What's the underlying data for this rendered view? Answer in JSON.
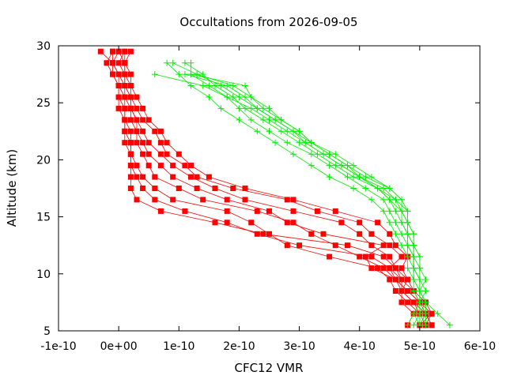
{
  "chart_data": {
    "type": "line",
    "title": "Occultations from 2026-09-05",
    "xlabel": "CFC12 VMR",
    "ylabel": "Altitude (km)",
    "xlim": [
      -1e-10,
      6e-10
    ],
    "ylim": [
      5,
      30
    ],
    "x_ticks": [
      {
        "value": -1e-10,
        "label": "-1e-10"
      },
      {
        "value": 0,
        "label": "0e+00"
      },
      {
        "value": 1e-10,
        "label": "1e-10"
      },
      {
        "value": 2e-10,
        "label": "2e-10"
      },
      {
        "value": 3e-10,
        "label": "3e-10"
      },
      {
        "value": 4e-10,
        "label": "4e-10"
      },
      {
        "value": 5e-10,
        "label": "5e-10"
      },
      {
        "value": 6e-10,
        "label": "6e-10"
      }
    ],
    "y_ticks": [
      {
        "value": 5,
        "label": "5"
      },
      {
        "value": 10,
        "label": "10"
      },
      {
        "value": 15,
        "label": "15"
      },
      {
        "value": 20,
        "label": "20"
      },
      {
        "value": 25,
        "label": "25"
      },
      {
        "value": 30,
        "label": "30"
      }
    ],
    "grid": false,
    "legend": "none",
    "colors": {
      "red_series": "#ff0000",
      "green_series": "#00ee00",
      "axis": "#000000"
    },
    "series": [
      {
        "color": "#ff0000",
        "marker": "square",
        "y": [
          5.5,
          6.5,
          7.5,
          8.5,
          9.5,
          10.5,
          11.5,
          12.5,
          13.5,
          14.5,
          15.5,
          16.5,
          17.5,
          18.5,
          19.5,
          20.5,
          21.5,
          22.5,
          23.5,
          24.5,
          25.5,
          26.5,
          27.5,
          28.5,
          29.5
        ],
        "x": [
          5.2e-10,
          5.1e-10,
          5e-10,
          4.9e-10,
          4.8e-10,
          4.6e-10,
          4.4e-10,
          3.8e-10,
          2.4e-10,
          1.6e-10,
          7e-11,
          3e-11,
          2e-11,
          2e-11,
          2e-11,
          2e-11,
          1e-11,
          1e-11,
          1e-11,
          0,
          0,
          0,
          -1e-11,
          -1e-11,
          -3e-11
        ]
      },
      {
        "color": "#ff0000",
        "marker": "square",
        "y": [
          5.5,
          6.5,
          7.5,
          8.5,
          9.5,
          10.5,
          11.5,
          12.5,
          13.5,
          14.5,
          15.5,
          16.5,
          17.5,
          18.5,
          19.5,
          20.5,
          21.5,
          22.5,
          23.5,
          24.5,
          25.5,
          26.5,
          27.5,
          28.5,
          29.5
        ],
        "x": [
          5e-10,
          5.2e-10,
          5.1e-10,
          4.9e-10,
          4.7e-10,
          4.5e-10,
          4.2e-10,
          3e-10,
          2.3e-10,
          1.8e-10,
          1.1e-10,
          6e-11,
          4e-11,
          3e-11,
          2e-11,
          2e-11,
          2e-11,
          1e-11,
          1e-11,
          1e-11,
          0,
          0,
          -1e-11,
          -2e-11,
          -1e-11
        ]
      },
      {
        "color": "#ff0000",
        "marker": "square",
        "y": [
          5.5,
          6.5,
          7.5,
          8.5,
          9.5,
          10.5,
          11.5,
          12.5,
          13.5,
          14.5,
          15.5,
          16.5,
          17.5,
          18.5,
          19.5,
          20.5,
          21.5,
          22.5,
          23.5,
          24.5,
          25.5,
          26.5,
          27.5,
          28.5,
          29.5
        ],
        "x": [
          5.1e-10,
          5e-10,
          4.8e-10,
          4.6e-10,
          4.5e-10,
          4.3e-10,
          3.5e-10,
          2.8e-10,
          2.5e-10,
          2.2e-10,
          1.8e-10,
          9e-11,
          6e-11,
          4e-11,
          3e-11,
          2e-11,
          2e-11,
          2e-11,
          1e-11,
          1e-11,
          1e-11,
          0,
          0,
          -1e-11,
          0
        ]
      },
      {
        "color": "#ff0000",
        "marker": "square",
        "y": [
          5.5,
          6.5,
          7.5,
          8.5,
          9.5,
          10.5,
          11.5,
          12.5,
          13.5,
          14.5,
          15.5,
          16.5,
          17.5,
          18.5,
          19.5,
          20.5,
          21.5,
          22.5,
          23.5,
          24.5,
          25.5,
          26.5,
          27.5,
          28.5,
          29.5
        ],
        "x": [
          4.8e-10,
          4.9e-10,
          4.7e-10,
          4.7e-10,
          4.6e-10,
          4.4e-10,
          4e-10,
          3.6e-10,
          3.2e-10,
          2.9e-10,
          2.3e-10,
          1.4e-10,
          1e-10,
          6e-11,
          5e-11,
          4e-11,
          3e-11,
          3e-11,
          2e-11,
          2e-11,
          1e-11,
          1e-11,
          0,
          -1e-11,
          -1e-11
        ]
      },
      {
        "color": "#ff0000",
        "marker": "square",
        "y": [
          5.5,
          6.5,
          7.5,
          8.5,
          9.5,
          10.5,
          11.5,
          12.5,
          13.5,
          14.5,
          15.5,
          16.5,
          17.5,
          18.5,
          19.5,
          20.5,
          21.5,
          22.5,
          23.5,
          24.5,
          25.5,
          26.5,
          27.5,
          28.5,
          29.5
        ],
        "x": [
          5.1e-10,
          5.2e-10,
          5e-10,
          4.8e-10,
          4.6e-10,
          4.2e-10,
          4.1e-10,
          4.4e-10,
          3.4e-10,
          2.8e-10,
          2.5e-10,
          1.8e-10,
          1.3e-10,
          9e-11,
          7e-11,
          5e-11,
          4e-11,
          3e-11,
          3e-11,
          2e-11,
          2e-11,
          1e-11,
          1e-11,
          0,
          1e-11
        ]
      },
      {
        "color": "#ff0000",
        "marker": "square",
        "y": [
          5.5,
          6.5,
          7.5,
          8.5,
          9.5,
          10.5,
          11.5,
          12.5,
          13.5,
          14.5,
          15.5,
          16.5,
          17.5,
          18.5,
          19.5,
          20.5,
          21.5,
          22.5,
          23.5,
          24.5,
          25.5,
          26.5,
          27.5,
          28.5,
          29.5
        ],
        "x": [
          5e-10,
          5e-10,
          4.9e-10,
          4.7e-10,
          4.7e-10,
          4.6e-10,
          4.5e-10,
          4.2e-10,
          4e-10,
          3.7e-10,
          2.9e-10,
          2.1e-10,
          1.6e-10,
          1.2e-10,
          9e-11,
          7e-11,
          5e-11,
          4e-11,
          3e-11,
          2e-11,
          2e-11,
          1e-11,
          1e-11,
          1e-11,
          0
        ]
      },
      {
        "color": "#ff0000",
        "marker": "square",
        "y": [
          5.5,
          6.5,
          7.5,
          8.5,
          9.5,
          10.5,
          11.5,
          12.5,
          13.5,
          14.5,
          15.5,
          16.5,
          17.5,
          18.5,
          19.5,
          20.5,
          21.5,
          22.5,
          23.5,
          24.5,
          25.5,
          26.5,
          27.5,
          28.5,
          29.5
        ],
        "x": [
          5.2e-10,
          5.1e-10,
          5e-10,
          4.8e-10,
          4.6e-10,
          4.5e-10,
          4.7e-10,
          4.5e-10,
          4.2e-10,
          4e-10,
          3.3e-10,
          2.8e-10,
          1.9e-10,
          1.3e-10,
          1.1e-10,
          8e-11,
          7e-11,
          6e-11,
          4e-11,
          3e-11,
          2e-11,
          2e-11,
          1e-11,
          1e-11,
          1e-11
        ]
      },
      {
        "color": "#ff0000",
        "marker": "square",
        "y": [
          5.5,
          6.5,
          7.5,
          8.5,
          9.5,
          10.5,
          11.5,
          12.5,
          13.5,
          14.5,
          15.5,
          16.5,
          17.5,
          18.5,
          19.5,
          20.5,
          21.5,
          22.5,
          23.5,
          24.5,
          25.5,
          26.5,
          27.5,
          28.5,
          29.5
        ],
        "x": [
          5e-10,
          5.1e-10,
          4.9e-10,
          4.7e-10,
          4.8e-10,
          4.7e-10,
          4.8e-10,
          4.6e-10,
          4.5e-10,
          4.3e-10,
          3.6e-10,
          2.9e-10,
          2.1e-10,
          1.5e-10,
          1.2e-10,
          1e-10,
          8e-11,
          7e-11,
          5e-11,
          4e-11,
          3e-11,
          2e-11,
          2e-11,
          1e-11,
          2e-11
        ]
      },
      {
        "color": "#00ee00",
        "marker": "plus",
        "y": [
          5.5,
          6.5,
          7.5,
          8.5,
          9.5,
          10.5,
          11.5,
          12.5,
          13.5,
          14.5,
          15.5,
          16.5,
          17.5,
          18.5,
          19.5,
          20.5,
          21.5,
          22.5,
          23.5,
          24.5,
          25.5,
          26.5,
          27.5,
          28.5
        ],
        "x": [
          4.9e-10,
          5e-10,
          5e-10,
          4.9e-10,
          4.9e-10,
          4.8e-10,
          4.8e-10,
          4.7e-10,
          4.6e-10,
          4.5e-10,
          4.4e-10,
          4.2e-10,
          3.9e-10,
          3.5e-10,
          3.2e-10,
          2.9e-10,
          2.6e-10,
          2.3e-10,
          2e-10,
          1.7e-10,
          1.5e-10,
          1.2e-10,
          1e-10,
          8e-11
        ]
      },
      {
        "color": "#00ee00",
        "marker": "plus",
        "y": [
          5.5,
          6.5,
          7.5,
          8.5,
          9.5,
          10.5,
          11.5,
          12.5,
          13.5,
          14.5,
          15.5,
          16.5,
          17.5,
          18.5,
          19.5,
          20.5,
          21.5,
          22.5,
          23.5,
          24.5,
          25.5,
          26.5,
          27.5,
          28.5
        ],
        "x": [
          5.5e-10,
          5.3e-10,
          5.1e-10,
          5e-10,
          5e-10,
          4.9e-10,
          4.9e-10,
          4.8e-10,
          4.7e-10,
          4.6e-10,
          4.5e-10,
          4.4e-10,
          4.1e-10,
          3.8e-10,
          3.5e-10,
          3.2e-10,
          2.8e-10,
          2.5e-10,
          2.2e-10,
          2e-10,
          1.8e-10,
          1.5e-10,
          1.2e-10,
          1.2e-10
        ]
      },
      {
        "color": "#00ee00",
        "marker": "plus",
        "y": [
          5.5,
          6.5,
          7.5,
          8.5,
          9.5,
          10.5,
          11.5,
          12.5,
          13.5,
          14.5,
          15.5,
          16.5,
          17.5,
          18.5,
          19.5,
          20.5,
          21.5,
          22.5,
          23.5,
          24.5,
          25.5,
          26.5,
          27.5,
          28.5
        ],
        "x": [
          4.8e-10,
          4.9e-10,
          5e-10,
          5e-10,
          4.9e-10,
          4.9e-10,
          4.8e-10,
          4.8e-10,
          4.8e-10,
          4.7e-10,
          4.6e-10,
          4.5e-10,
          4.3e-10,
          3.9e-10,
          3.6e-10,
          3.3e-10,
          3e-10,
          2.7e-10,
          2.4e-10,
          2.1e-10,
          1.9e-10,
          1.6e-10,
          1.4e-10,
          1.1e-10
        ]
      },
      {
        "color": "#00ee00",
        "marker": "plus",
        "y": [
          5.5,
          6.5,
          7.5,
          8.5,
          9.5,
          10.5,
          11.5,
          12.5,
          13.5,
          14.5,
          15.5,
          16.5,
          17.5,
          18.5,
          19.5,
          20.5,
          21.5,
          22.5,
          23.5,
          24.5,
          25.5,
          26.5,
          27.5
        ],
        "x": [
          5.1e-10,
          5e-10,
          5.1e-10,
          5e-10,
          5e-10,
          5e-10,
          4.9e-10,
          4.9e-10,
          4.8e-10,
          4.7e-10,
          4.7e-10,
          4.6e-10,
          4.4e-10,
          4e-10,
          3.7e-10,
          3.4e-10,
          3.1e-10,
          2.8e-10,
          2.5e-10,
          2.2e-10,
          1.8e-10,
          1.4e-10,
          6e-11
        ]
      },
      {
        "color": "#00ee00",
        "marker": "plus",
        "y": [
          5.5,
          6.5,
          7.5,
          8.5,
          9.5,
          10.5,
          11.5,
          12.5,
          13.5,
          14.5,
          15.5,
          16.5,
          17.5,
          18.5,
          19.5,
          20.5,
          21.5,
          22.5,
          23.5,
          24.5,
          25.5,
          26.5,
          27.5,
          28.5
        ],
        "x": [
          5e-10,
          5.1e-10,
          5.1e-10,
          5e-10,
          5.1e-10,
          5e-10,
          5e-10,
          4.9e-10,
          4.9e-10,
          4.8e-10,
          4.7e-10,
          4.7e-10,
          4.5e-10,
          4.2e-10,
          3.9e-10,
          3.6e-10,
          3.2e-10,
          2.9e-10,
          2.6e-10,
          2.3e-10,
          2e-10,
          1.7e-10,
          1.3e-10,
          9e-11
        ]
      },
      {
        "color": "#00ee00",
        "marker": "plus",
        "y": [
          5.5,
          6.5,
          7.5,
          8.5,
          9.5,
          10.5,
          11.5,
          12.5,
          13.5,
          14.5,
          15.5,
          16.5,
          17.5,
          18.5,
          19.5,
          20.5,
          21.5,
          22.5,
          23.5,
          24.5,
          25.5,
          26.5,
          27.5
        ],
        "x": [
          5e-10,
          4.9e-10,
          5e-10,
          5e-10,
          4.9e-10,
          4.9e-10,
          4.9e-10,
          4.8e-10,
          4.8e-10,
          4.8e-10,
          4.8e-10,
          4.6e-10,
          4.3e-10,
          4e-10,
          3.7e-10,
          3.4e-10,
          3.1e-10,
          2.9e-10,
          2.6e-10,
          2.3e-10,
          2.1e-10,
          1.8e-10,
          1.1e-10
        ]
      },
      {
        "color": "#00ee00",
        "marker": "plus",
        "y": [
          5.5,
          6.5,
          7.5,
          8.5,
          9.5,
          10.5,
          11.5,
          12.5,
          13.5,
          14.5,
          15.5,
          16.5,
          17.5,
          18.5,
          19.5,
          20.5,
          21.5,
          22.5,
          23.5,
          24.5,
          25.5,
          26.5,
          27.5
        ],
        "x": [
          5.1e-10,
          5.1e-10,
          5e-10,
          5e-10,
          5e-10,
          4.9e-10,
          4.9e-10,
          4.9e-10,
          4.8e-10,
          4.8e-10,
          4.7e-10,
          4.5e-10,
          4.3e-10,
          4e-10,
          3.8e-10,
          3.5e-10,
          3.2e-10,
          3e-10,
          2.7e-10,
          2.4e-10,
          2.2e-10,
          2.1e-10,
          1.2e-10
        ]
      },
      {
        "color": "#00ee00",
        "marker": "plus",
        "y": [
          5.5,
          6.5,
          7.5,
          8.5,
          9.5,
          10.5,
          11.5,
          12.5,
          13.5,
          14.5,
          15.5,
          16.5,
          17.5,
          18.5,
          19.5,
          20.5,
          21.5,
          22.5,
          23.5,
          24.5,
          25.5,
          26.5,
          27.5
        ],
        "x": [
          5e-10,
          5e-10,
          5e-10,
          5.1e-10,
          5e-10,
          5e-10,
          5e-10,
          4.9e-10,
          4.9e-10,
          4.8e-10,
          4.8e-10,
          4.7e-10,
          4.5e-10,
          4.1e-10,
          3.8e-10,
          3.5e-10,
          3.2e-10,
          3e-10,
          2.7e-10,
          2.5e-10,
          2.2e-10,
          1.9e-10,
          1.3e-10
        ]
      }
    ]
  }
}
